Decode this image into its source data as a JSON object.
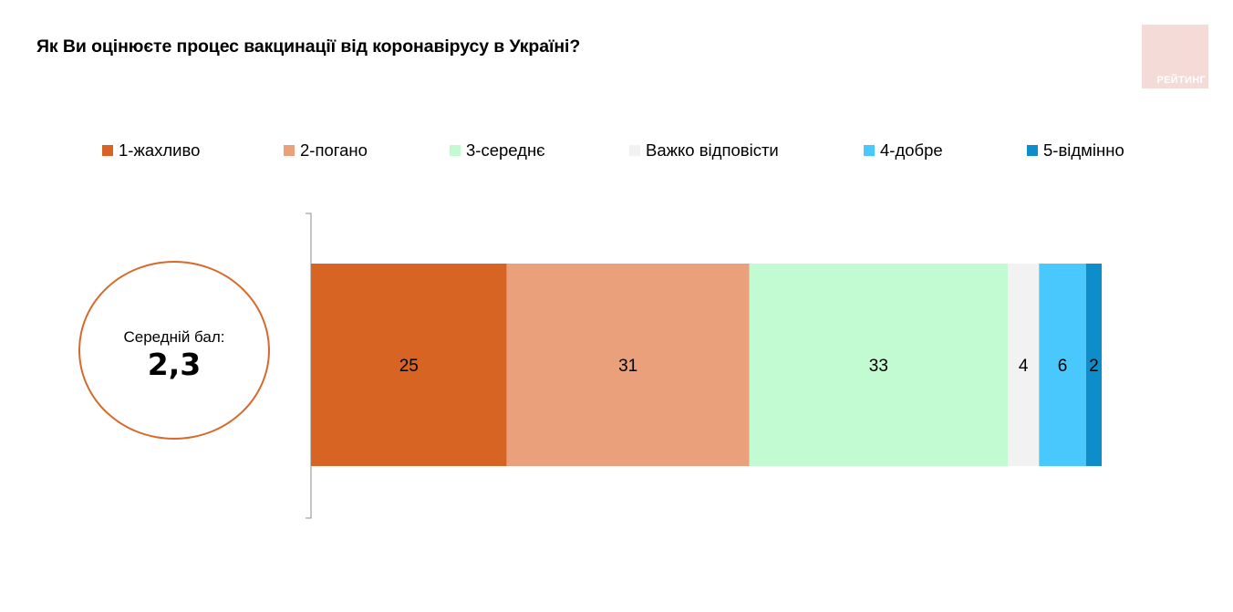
{
  "title": "Як Ви оцінюєте процес вакцинації від коронавірусу в Україні?",
  "logo": {
    "text": "РЕЙТИНГ",
    "color": "#f4dbd8"
  },
  "average": {
    "label": "Середній бал:",
    "value": "2,3",
    "ring_color": "#d9692a"
  },
  "chart_data": {
    "type": "bar",
    "orientation": "horizontal",
    "stacked": true,
    "categories": [
      ""
    ],
    "xlim": [
      0,
      101
    ],
    "grid": false,
    "legend_position": "top",
    "series": [
      {
        "name": "1-жахливо",
        "values": [
          25
        ],
        "color": "#d76422"
      },
      {
        "name": "2-погано",
        "values": [
          31
        ],
        "color": "#eaa17b"
      },
      {
        "name": "3-середнє",
        "values": [
          33
        ],
        "color": "#c2fbd1"
      },
      {
        "name": "Важко відповісти",
        "values": [
          4
        ],
        "color": "#f2f2f2"
      },
      {
        "name": "4-добре",
        "values": [
          6
        ],
        "color": "#48c8fc"
      },
      {
        "name": "5-відмінно",
        "values": [
          2
        ],
        "color": "#0d8dc9"
      }
    ]
  }
}
